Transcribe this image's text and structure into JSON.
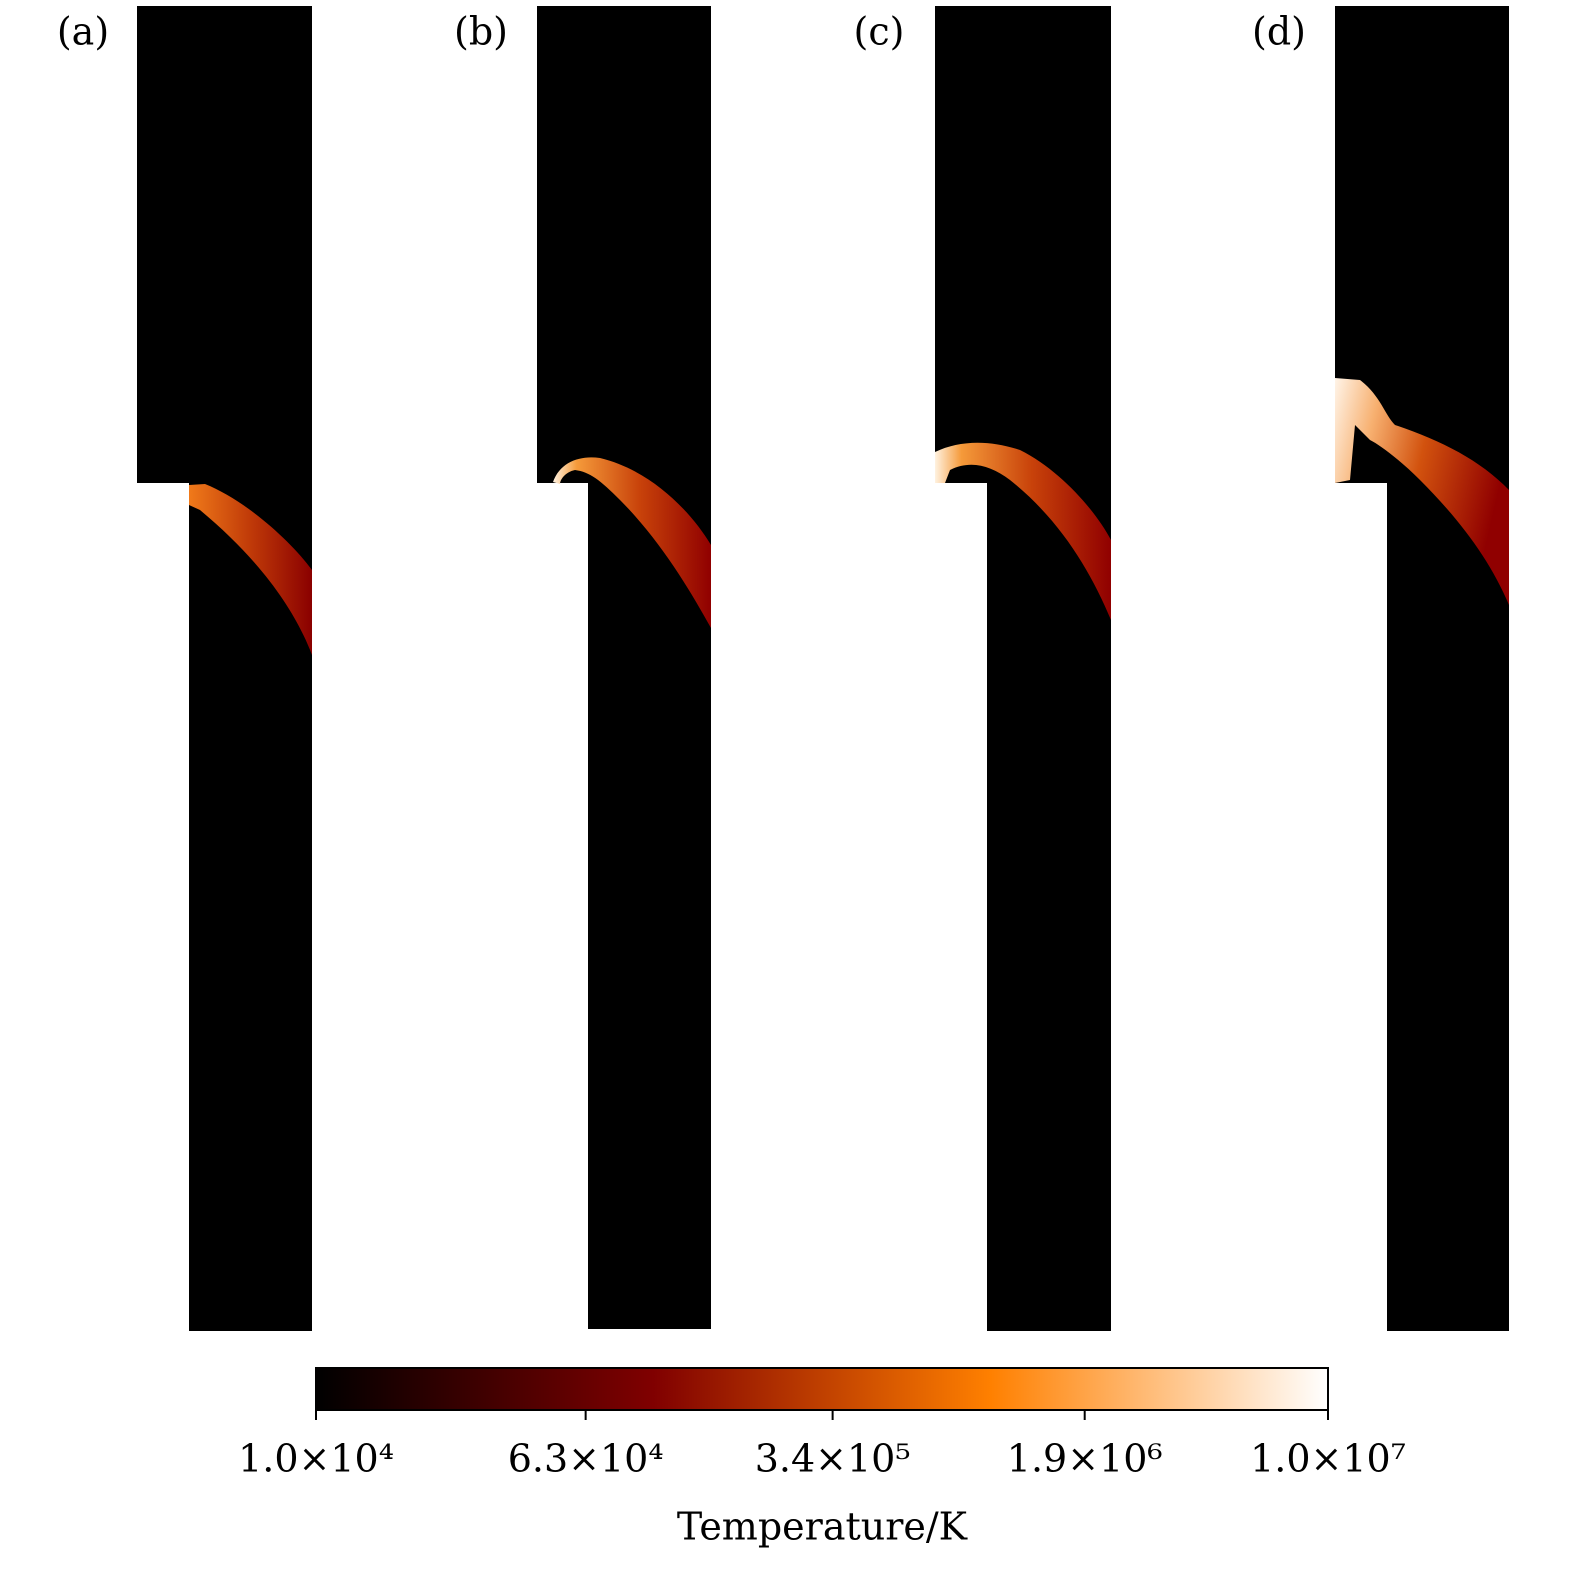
{
  "chart_data": {
    "type": "heatmap",
    "panels": [
      "(a)",
      "(b)",
      "(c)",
      "(d)"
    ],
    "colorbar": {
      "label": "Temperature/K",
      "log_scale": true,
      "lim": [
        10000,
        10000000
      ],
      "ticks": [
        {
          "value": 10000,
          "label": "1.0×10⁴"
        },
        {
          "value": 63000,
          "label": "6.3×10⁴"
        },
        {
          "value": 340000,
          "label": "3.4×10⁵"
        },
        {
          "value": 1900000,
          "label": "1.9×10⁶"
        },
        {
          "value": 10000000,
          "label": "1.0×10⁷"
        }
      ],
      "colors": [
        "#000000",
        "#800000",
        "#ff8000",
        "#ffffff"
      ]
    }
  }
}
